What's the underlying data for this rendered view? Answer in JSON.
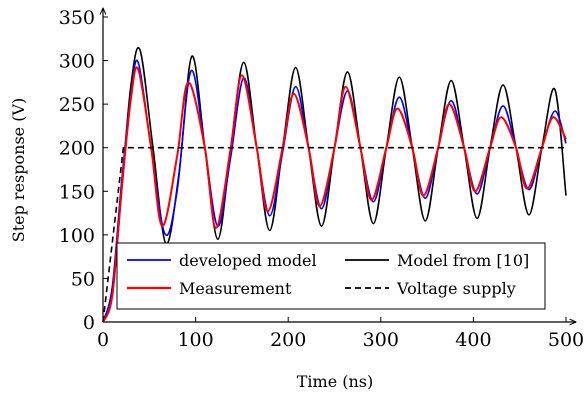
{
  "chart_data": {
    "type": "line",
    "xlabel": "Time (ns)",
    "ylabel": "Step response (V)",
    "xlim": [
      0,
      500
    ],
    "ylim": [
      0,
      350
    ],
    "xticks": [
      0,
      100,
      200,
      300,
      400,
      500
    ],
    "yticks": [
      0,
      50,
      100,
      150,
      200,
      250,
      300,
      350
    ],
    "grid": false,
    "legend_position": "bottom-left",
    "series": [
      {
        "name": "developed model",
        "color": "#0000ff",
        "x": [
          0,
          10,
          20,
          30,
          38,
          52,
          67,
          80,
          95,
          110,
          124,
          138,
          152,
          166,
          180,
          194,
          208,
          222,
          236,
          250,
          264,
          278,
          292,
          306,
          320,
          334,
          348,
          362,
          376,
          390,
          404,
          418,
          432,
          446,
          460,
          474,
          488,
          500
        ],
        "values": [
          0,
          40,
          160,
          260,
          298,
          200,
          101,
          150,
          288,
          200,
          110,
          190,
          280,
          200,
          122,
          195,
          270,
          200,
          130,
          200,
          265,
          200,
          138,
          200,
          258,
          200,
          142,
          200,
          254,
          200,
          147,
          200,
          248,
          200,
          152,
          200,
          242,
          205
        ]
      },
      {
        "name": "Model from [10]",
        "color": "#000000",
        "x": [
          0,
          10,
          20,
          30,
          40,
          54,
          68,
          82,
          96,
          110,
          124,
          138,
          152,
          166,
          180,
          194,
          208,
          222,
          236,
          250,
          264,
          278,
          292,
          306,
          320,
          334,
          348,
          362,
          376,
          390,
          404,
          418,
          432,
          446,
          460,
          474,
          488,
          500
        ],
        "values": [
          0,
          30,
          150,
          270,
          312,
          200,
          90,
          170,
          305,
          200,
          95,
          200,
          298,
          200,
          105,
          200,
          292,
          200,
          110,
          200,
          287,
          200,
          113,
          200,
          281,
          200,
          116,
          200,
          277,
          200,
          119,
          200,
          272,
          200,
          123,
          200,
          267,
          145
        ]
      },
      {
        "name": "Measurement",
        "color": "#ff0000",
        "x": [
          0,
          10,
          20,
          30,
          38,
          52,
          64,
          80,
          92,
          110,
          122,
          138,
          150,
          166,
          178,
          194,
          206,
          222,
          234,
          250,
          262,
          278,
          290,
          306,
          318,
          334,
          346,
          362,
          374,
          390,
          402,
          418,
          430,
          446,
          458,
          474,
          486,
          500
        ],
        "values": [
          0,
          30,
          150,
          255,
          290,
          200,
          110,
          190,
          275,
          200,
          108,
          200,
          283,
          200,
          127,
          200,
          262,
          200,
          133,
          200,
          270,
          200,
          140,
          200,
          245,
          200,
          145,
          200,
          250,
          200,
          150,
          200,
          235,
          200,
          153,
          200,
          235,
          210
        ]
      },
      {
        "name": "Voltage supply",
        "color": "#000000",
        "dashed": true,
        "x": [
          0,
          22,
          500
        ],
        "values": [
          0,
          200,
          200
        ]
      }
    ]
  }
}
